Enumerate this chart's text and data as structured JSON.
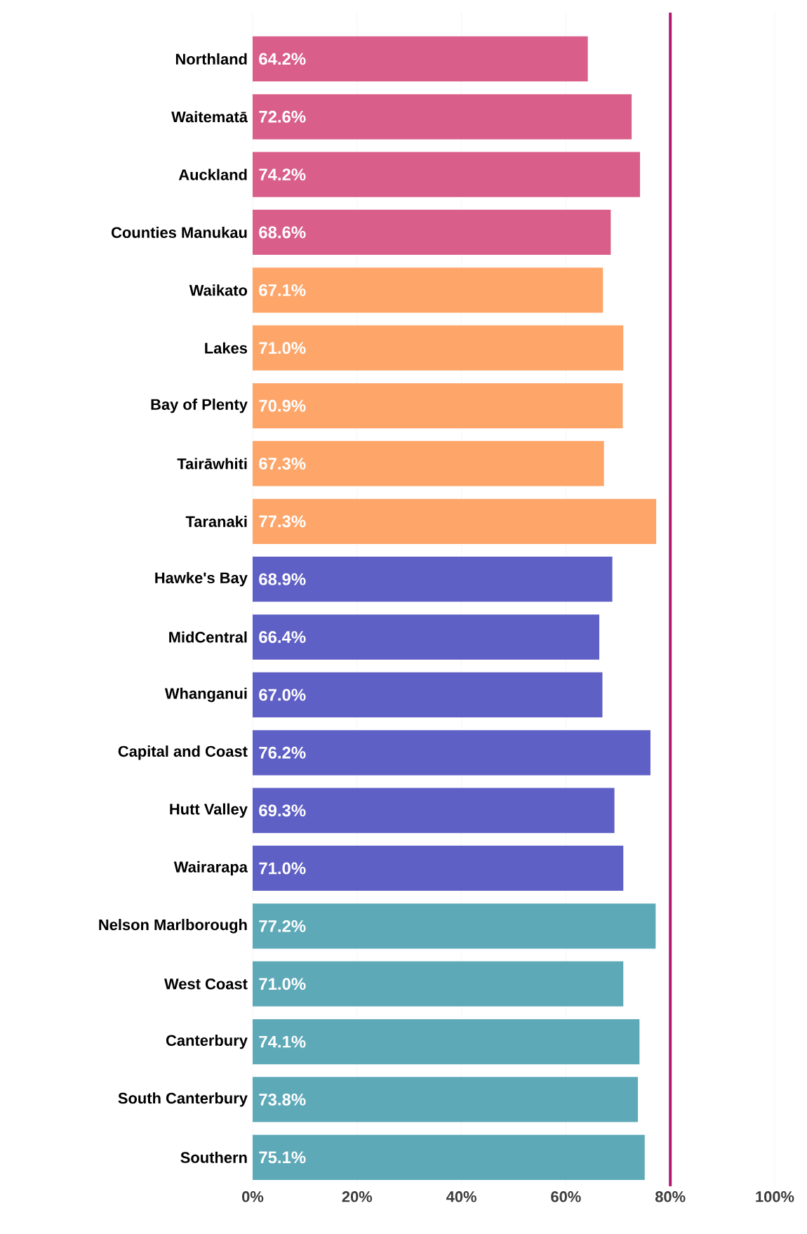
{
  "chart_data": {
    "type": "bar",
    "orientation": "horizontal",
    "categories": [
      "Northland",
      "Waitematā",
      "Auckland",
      "Counties Manukau",
      "Waikato",
      "Lakes",
      "Bay of Plenty",
      "Tairāwhiti",
      "Taranaki",
      "Hawke's Bay",
      "MidCentral",
      "Whanganui",
      "Capital and Coast",
      "Hutt Valley",
      "Wairarapa",
      "Nelson Marlborough",
      "West Coast",
      "Canterbury",
      "South Canterbury",
      "Southern"
    ],
    "values": [
      64.2,
      72.6,
      74.2,
      68.6,
      67.1,
      71.0,
      70.9,
      67.3,
      77.3,
      68.9,
      66.4,
      67.0,
      76.2,
      69.3,
      71.0,
      77.2,
      71.0,
      74.1,
      73.8,
      75.1
    ],
    "value_labels": [
      "64.2%",
      "72.6%",
      "74.2%",
      "68.6%",
      "67.1%",
      "71.0%",
      "70.9%",
      "67.3%",
      "77.3%",
      "68.9%",
      "66.4%",
      "67.0%",
      "76.2%",
      "69.3%",
      "71.0%",
      "77.2%",
      "71.0%",
      "74.1%",
      "73.8%",
      "75.1%"
    ],
    "colors": [
      "#d95f8a",
      "#d95f8a",
      "#d95f8a",
      "#d95f8a",
      "#fea66a",
      "#fea66a",
      "#fea66a",
      "#fea66a",
      "#fea66a",
      "#5f60c6",
      "#5f60c6",
      "#5f60c6",
      "#5f60c6",
      "#5f60c6",
      "#5f60c6",
      "#5ea9b8",
      "#5ea9b8",
      "#5ea9b8",
      "#5ea9b8",
      "#5ea9b8"
    ],
    "xlim": [
      0,
      100
    ],
    "xticks": [
      {
        "value": 0,
        "label": "0%"
      },
      {
        "value": 20,
        "label": "20%"
      },
      {
        "value": 40,
        "label": "40%"
      },
      {
        "value": 60,
        "label": "60%"
      },
      {
        "value": 80,
        "label": "80%"
      },
      {
        "value": 100,
        "label": "100%"
      }
    ],
    "grid": "x",
    "ref_lines": [
      {
        "axis": "x",
        "value": 80,
        "color": "#b5186f"
      }
    ]
  }
}
